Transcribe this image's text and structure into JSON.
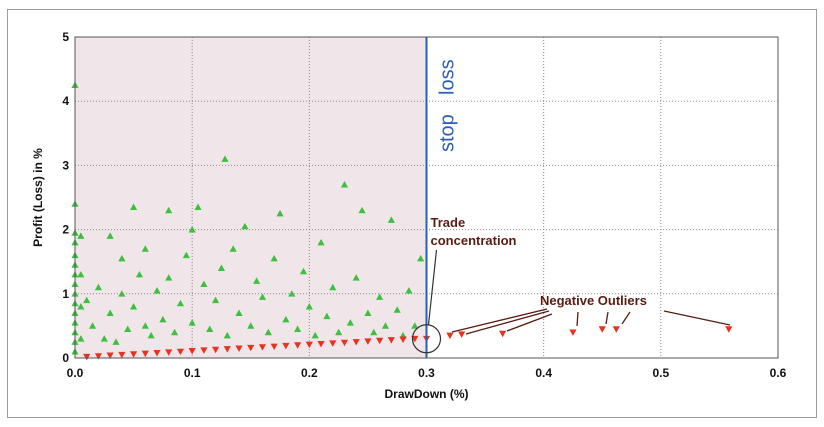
{
  "chart_data": {
    "type": "scatter",
    "title": "",
    "xlabel": "DrawDown (%)",
    "ylabel": "Profit (Loss) in %",
    "xlim": [
      0,
      0.6
    ],
    "ylim": [
      0,
      5
    ],
    "xticks": [
      "0.0",
      "0.1",
      "0.2",
      "0.3",
      "0.4",
      "0.5",
      "0.6"
    ],
    "yticks": [
      "0",
      "1",
      "2",
      "3",
      "4",
      "5"
    ],
    "grid": true,
    "shaded_region": {
      "x": [
        0,
        0.3
      ],
      "color": "#f0e6ea"
    },
    "colors": {
      "profit": "#3fbf3f",
      "loss": "#e8321e",
      "stop_line": "#2a5fb5",
      "annotation": "#5a1c10"
    },
    "stop_line": {
      "x": 0.3,
      "label_bottom": "stop",
      "label_top": "loss"
    },
    "annotations": [
      {
        "text_lines": [
          "Trade",
          "concentration"
        ],
        "target": [
          0.3,
          0.3
        ]
      },
      {
        "text_lines": [
          "Negative Outliers"
        ]
      }
    ],
    "series": [
      {
        "marker": "triangle-up",
        "color": "#3fbf3f",
        "points": [
          [
            0.0,
            4.25
          ],
          [
            0.0,
            2.4
          ],
          [
            0.0,
            1.95
          ],
          [
            0.0,
            1.8
          ],
          [
            0.0,
            1.6
          ],
          [
            0.0,
            1.45
          ],
          [
            0.0,
            1.3
          ],
          [
            0.0,
            1.15
          ],
          [
            0.0,
            1.0
          ],
          [
            0.0,
            0.85
          ],
          [
            0.0,
            0.7
          ],
          [
            0.0,
            0.55
          ],
          [
            0.0,
            0.4
          ],
          [
            0.0,
            0.25
          ],
          [
            0.0,
            0.1
          ],
          [
            0.005,
            1.9
          ],
          [
            0.005,
            1.3
          ],
          [
            0.005,
            0.8
          ],
          [
            0.005,
            0.3
          ],
          [
            0.01,
            0.9
          ],
          [
            0.015,
            0.5
          ],
          [
            0.02,
            1.1
          ],
          [
            0.025,
            0.3
          ],
          [
            0.03,
            0.7
          ],
          [
            0.03,
            1.9
          ],
          [
            0.035,
            0.25
          ],
          [
            0.04,
            1.0
          ],
          [
            0.04,
            1.55
          ],
          [
            0.045,
            0.45
          ],
          [
            0.05,
            2.35
          ],
          [
            0.05,
            0.8
          ],
          [
            0.055,
            1.3
          ],
          [
            0.06,
            0.5
          ],
          [
            0.06,
            1.7
          ],
          [
            0.065,
            0.35
          ],
          [
            0.07,
            1.05
          ],
          [
            0.075,
            0.6
          ],
          [
            0.08,
            2.3
          ],
          [
            0.08,
            1.25
          ],
          [
            0.085,
            0.4
          ],
          [
            0.09,
            0.85
          ],
          [
            0.095,
            1.6
          ],
          [
            0.1,
            0.55
          ],
          [
            0.1,
            2.0
          ],
          [
            0.105,
            2.35
          ],
          [
            0.11,
            1.15
          ],
          [
            0.115,
            0.45
          ],
          [
            0.12,
            0.9
          ],
          [
            0.125,
            1.4
          ],
          [
            0.128,
            3.1
          ],
          [
            0.13,
            0.35
          ],
          [
            0.135,
            1.7
          ],
          [
            0.14,
            0.7
          ],
          [
            0.145,
            2.05
          ],
          [
            0.15,
            0.5
          ],
          [
            0.155,
            1.2
          ],
          [
            0.16,
            0.95
          ],
          [
            0.165,
            0.4
          ],
          [
            0.17,
            1.55
          ],
          [
            0.175,
            2.25
          ],
          [
            0.18,
            0.6
          ],
          [
            0.185,
            1.0
          ],
          [
            0.19,
            0.45
          ],
          [
            0.195,
            1.35
          ],
          [
            0.2,
            0.8
          ],
          [
            0.205,
            0.35
          ],
          [
            0.21,
            1.8
          ],
          [
            0.215,
            0.65
          ],
          [
            0.22,
            1.1
          ],
          [
            0.225,
            0.4
          ],
          [
            0.23,
            2.7
          ],
          [
            0.235,
            0.55
          ],
          [
            0.24,
            1.25
          ],
          [
            0.245,
            2.3
          ],
          [
            0.25,
            0.7
          ],
          [
            0.255,
            0.4
          ],
          [
            0.26,
            0.95
          ],
          [
            0.265,
            0.5
          ],
          [
            0.27,
            2.15
          ],
          [
            0.275,
            0.75
          ],
          [
            0.28,
            0.35
          ],
          [
            0.285,
            1.05
          ],
          [
            0.29,
            0.5
          ],
          [
            0.295,
            1.55
          ]
        ]
      },
      {
        "marker": "triangle-down",
        "color": "#e8321e",
        "points": [
          [
            0.01,
            0.02
          ],
          [
            0.02,
            0.03
          ],
          [
            0.03,
            0.04
          ],
          [
            0.04,
            0.05
          ],
          [
            0.05,
            0.06
          ],
          [
            0.06,
            0.07
          ],
          [
            0.07,
            0.08
          ],
          [
            0.08,
            0.09
          ],
          [
            0.09,
            0.1
          ],
          [
            0.1,
            0.11
          ],
          [
            0.11,
            0.12
          ],
          [
            0.12,
            0.13
          ],
          [
            0.13,
            0.14
          ],
          [
            0.14,
            0.15
          ],
          [
            0.15,
            0.16
          ],
          [
            0.16,
            0.17
          ],
          [
            0.17,
            0.18
          ],
          [
            0.18,
            0.19
          ],
          [
            0.19,
            0.2
          ],
          [
            0.2,
            0.21
          ],
          [
            0.21,
            0.22
          ],
          [
            0.22,
            0.23
          ],
          [
            0.23,
            0.24
          ],
          [
            0.24,
            0.25
          ],
          [
            0.25,
            0.26
          ],
          [
            0.26,
            0.27
          ],
          [
            0.27,
            0.28
          ],
          [
            0.28,
            0.29
          ],
          [
            0.29,
            0.3
          ],
          [
            0.3,
            0.3
          ],
          [
            0.32,
            0.35
          ],
          [
            0.33,
            0.37
          ],
          [
            0.365,
            0.38
          ],
          [
            0.425,
            0.4
          ],
          [
            0.45,
            0.45
          ],
          [
            0.462,
            0.45
          ],
          [
            0.558,
            0.45
          ]
        ]
      }
    ]
  }
}
